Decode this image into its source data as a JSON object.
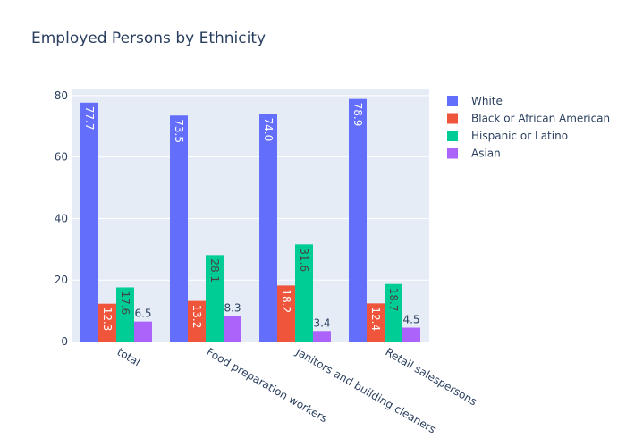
{
  "chart_data": {
    "type": "bar",
    "title": "Employed Persons by Ethnicity",
    "xlabel": "",
    "ylabel": "",
    "categories": [
      "total",
      "Food preparation workers",
      "Janitors and building cleaners",
      "Retail salespersons"
    ],
    "series": [
      {
        "name": "White",
        "color": "#636efa",
        "values": [
          77.7,
          73.5,
          74.0,
          78.9
        ]
      },
      {
        "name": "Black or African American",
        "color": "#ef553b",
        "values": [
          12.3,
          13.2,
          18.2,
          12.4
        ]
      },
      {
        "name": "Hispanic or Latino",
        "color": "#00cc96",
        "values": [
          17.6,
          28.1,
          31.6,
          18.7
        ]
      },
      {
        "name": "Asian",
        "color": "#ab63fa",
        "values": [
          6.5,
          8.3,
          3.4,
          4.5
        ]
      }
    ],
    "data_labels": [
      [
        "77.7",
        "73.5",
        "74.0",
        "78.9"
      ],
      [
        "12.3",
        "13.2",
        "18.2",
        "12.4"
      ],
      [
        "17.6",
        "28.1",
        "31.6",
        "18.7"
      ],
      [
        "6.5",
        "8.3",
        "3.4",
        "4.5"
      ]
    ],
    "ylim": [
      0,
      82
    ],
    "yticks": [
      "0",
      "20",
      "40",
      "60",
      "80"
    ],
    "grid": true,
    "legend_position": "top-right"
  }
}
